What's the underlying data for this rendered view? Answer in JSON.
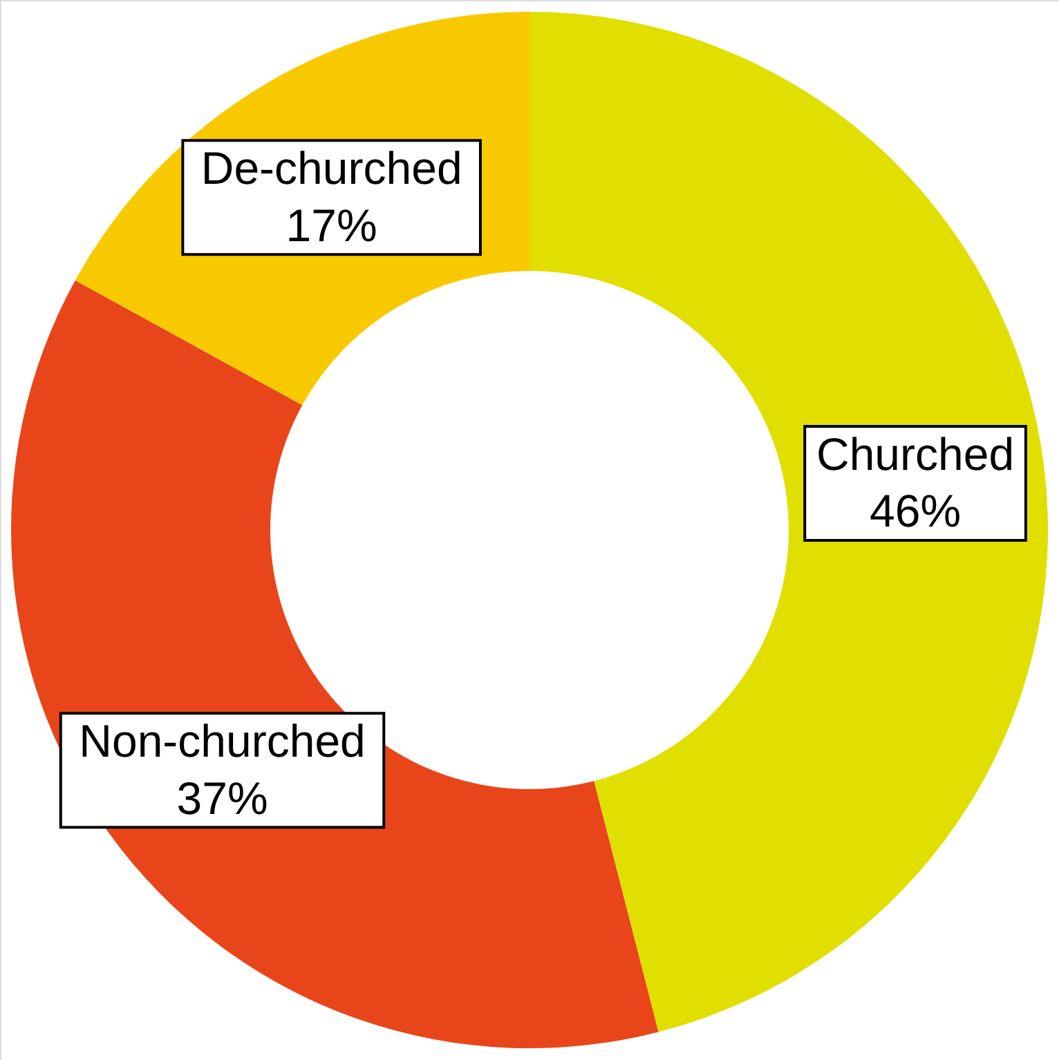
{
  "chart_data": {
    "type": "donut",
    "categories": [
      "Churched",
      "Non-churched",
      "De-churched"
    ],
    "values": [
      46,
      37,
      17
    ],
    "value_labels": [
      "46%",
      "37%",
      "17%"
    ],
    "colors": [
      "#e0df00",
      "#e8461a",
      "#f9c900"
    ]
  }
}
